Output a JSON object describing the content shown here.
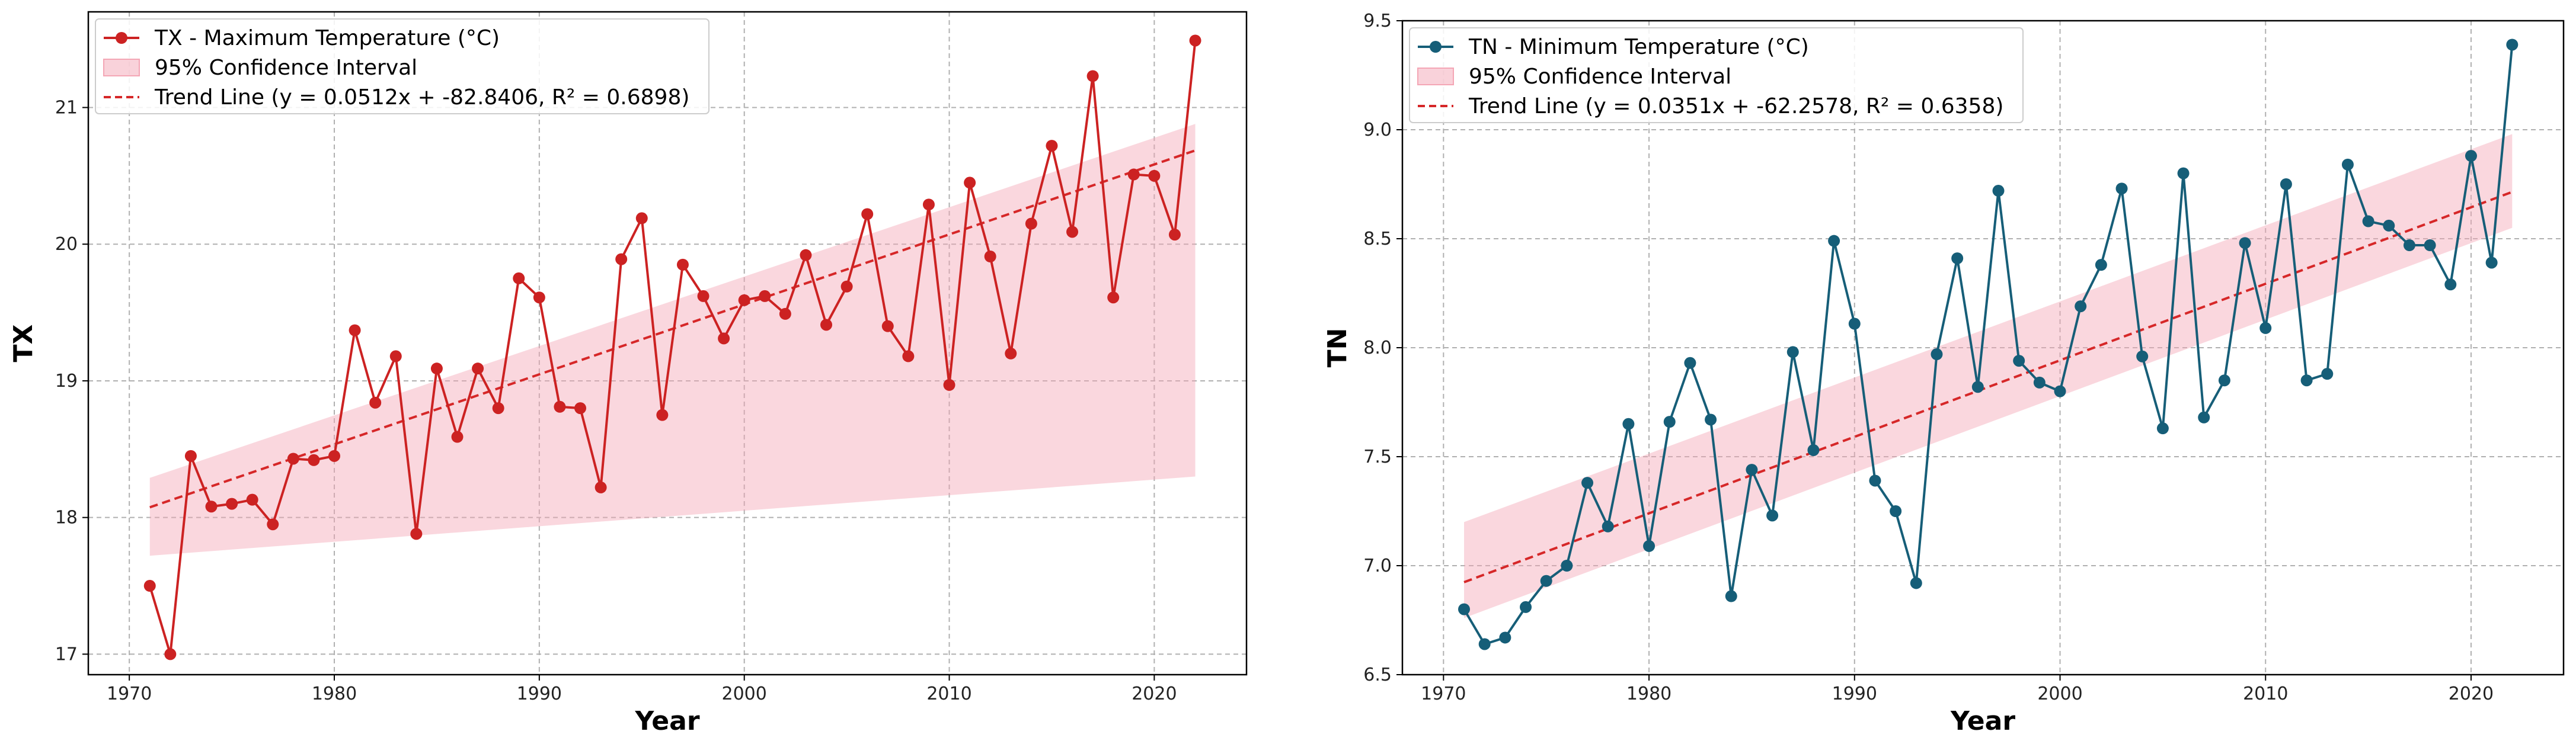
{
  "chart_data": [
    {
      "type": "line",
      "xlabel": "Year",
      "ylabel": "TX",
      "xlim": [
        1968,
        2024.5
      ],
      "ylim": [
        16.85,
        21.7
      ],
      "xticks": [
        1970,
        1980,
        1990,
        2000,
        2010,
        2020
      ],
      "yticks": [
        17,
        18,
        19,
        20,
        21
      ],
      "grid": true,
      "legend_position": "top-left",
      "color": "#cc2222",
      "ci_color": "#f4a6b5",
      "trend_color": "#d62728",
      "series": [
        {
          "name": "TX - Maximum Temperature (°C)",
          "x": [
            1971,
            1972,
            1973,
            1974,
            1975,
            1976,
            1977,
            1978,
            1979,
            1980,
            1981,
            1982,
            1983,
            1984,
            1985,
            1986,
            1987,
            1988,
            1989,
            1990,
            1991,
            1992,
            1993,
            1994,
            1995,
            1996,
            1997,
            1998,
            1999,
            2000,
            2001,
            2002,
            2003,
            2004,
            2005,
            2006,
            2007,
            2008,
            2009,
            2010,
            2011,
            2012,
            2013,
            2014,
            2015,
            2016,
            2017,
            2018,
            2019,
            2020,
            2021,
            2022
          ],
          "values": [
            17.5,
            17.0,
            18.45,
            18.08,
            18.1,
            18.13,
            17.95,
            18.43,
            18.42,
            18.45,
            19.37,
            18.84,
            19.18,
            17.88,
            19.09,
            18.59,
            19.09,
            18.8,
            19.75,
            19.61,
            18.81,
            18.8,
            18.22,
            19.89,
            20.19,
            18.75,
            19.85,
            19.62,
            19.31,
            19.59,
            19.62,
            19.49,
            19.92,
            19.41,
            19.69,
            20.22,
            19.4,
            19.18,
            20.29,
            18.97,
            20.45,
            19.91,
            19.2,
            20.15,
            20.72,
            20.09,
            21.23,
            19.61,
            20.51,
            20.5,
            20.07,
            21.49
          ]
        }
      ],
      "ci_label": "95% Confidence Interval",
      "ci_lower": [
        17.72,
        18.3
      ],
      "ci_upper": [
        18.29,
        20.88
      ],
      "trend_label": "Trend Line (y = 0.0512x + -82.8406, R² = 0.6898)",
      "trend_slope": 0.0512,
      "trend_intercept": -82.8406
    },
    {
      "type": "line",
      "xlabel": "Year",
      "ylabel": "TN",
      "xlim": [
        1968,
        2024.5
      ],
      "ylim": [
        6.5,
        9.5
      ],
      "xticks": [
        1970,
        1980,
        1990,
        2000,
        2010,
        2020
      ],
      "yticks": [
        6.5,
        7.0,
        7.5,
        8.0,
        8.5,
        9.0,
        9.5
      ],
      "ytick_labels": [
        "6.5",
        "7.0",
        "7.5",
        "8.0",
        "8.5",
        "9.0",
        "9.5"
      ],
      "grid": true,
      "legend_position": "top-left",
      "color": "#165e78",
      "ci_color": "#f4a6b5",
      "trend_color": "#d62728",
      "series": [
        {
          "name": "TN - Minimum Temperature (°C)",
          "x": [
            1971,
            1972,
            1973,
            1974,
            1975,
            1976,
            1977,
            1978,
            1979,
            1980,
            1981,
            1982,
            1983,
            1984,
            1985,
            1986,
            1987,
            1988,
            1989,
            1990,
            1991,
            1992,
            1993,
            1994,
            1995,
            1996,
            1997,
            1998,
            1999,
            2000,
            2001,
            2002,
            2003,
            2004,
            2005,
            2006,
            2007,
            2008,
            2009,
            2010,
            2011,
            2012,
            2013,
            2014,
            2015,
            2016,
            2017,
            2018,
            2019,
            2020,
            2021,
            2022
          ],
          "values": [
            6.8,
            6.64,
            6.67,
            6.81,
            6.93,
            7.0,
            7.38,
            7.18,
            7.65,
            7.09,
            7.66,
            7.93,
            7.67,
            6.86,
            7.44,
            7.23,
            7.98,
            7.53,
            8.49,
            8.11,
            7.39,
            7.25,
            6.92,
            7.97,
            8.41,
            7.82,
            8.72,
            7.94,
            7.84,
            7.8,
            8.19,
            8.38,
            8.73,
            7.96,
            7.63,
            8.8,
            7.68,
            7.85,
            8.48,
            8.09,
            8.75,
            7.85,
            7.88,
            8.84,
            8.58,
            8.56,
            8.47,
            8.47,
            8.29,
            8.88,
            8.39,
            9.39
          ]
        }
      ],
      "ci_label": "95% Confidence Interval",
      "ci_lower": [
        6.76,
        8.55
      ],
      "ci_upper": [
        7.2,
        8.98
      ],
      "trend_label": "Trend Line (y = 0.0351x + -62.2578, R² = 0.6358)",
      "trend_slope": 0.0351,
      "trend_intercept": -62.2578
    }
  ]
}
